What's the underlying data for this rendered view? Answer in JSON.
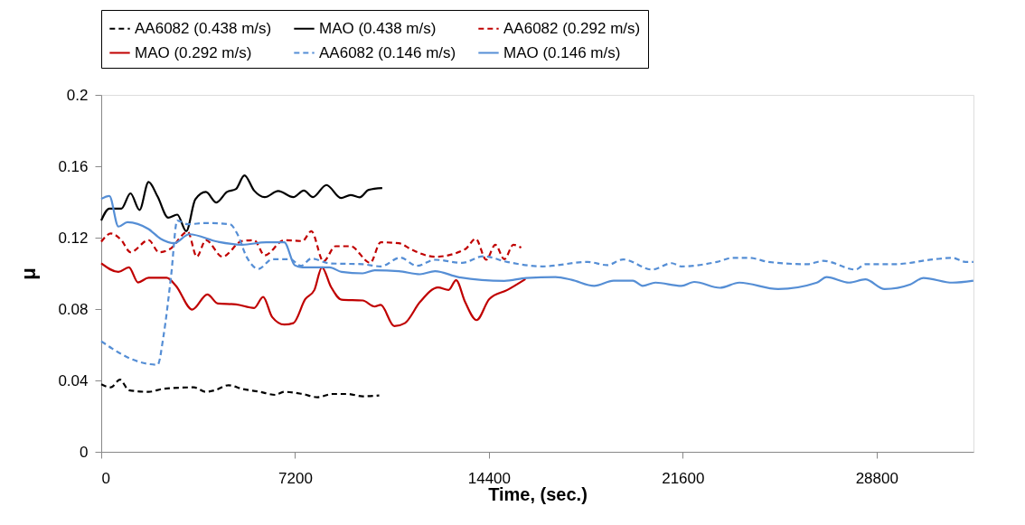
{
  "chart_data": {
    "type": "line",
    "xlabel": "Time, (sec.)",
    "ylabel": "μ",
    "xlim": [
      0,
      32400
    ],
    "xticks": [
      0,
      7200,
      14400,
      21600,
      28800
    ],
    "ylim": [
      0,
      0.2
    ],
    "yticks": [
      0,
      0.04,
      0.08,
      0.12,
      0.16,
      0.2
    ],
    "grid": false,
    "legend": "top",
    "marker": "none",
    "series": [
      {
        "name": "AA6082 (0.438 m/s)",
        "color": "#000000",
        "line_style": "dashed",
        "x": [
          0,
          358,
          694,
          1030,
          1758,
          2318,
          3438,
          3886,
          4222,
          4726,
          5230,
          5902,
          6462,
          6798,
          7470,
          8030,
          8590,
          9150,
          9710,
          10326
        ],
        "values": [
          0.0378,
          0.0361,
          0.0404,
          0.0345,
          0.0336,
          0.0353,
          0.0361,
          0.0336,
          0.0345,
          0.0373,
          0.0353,
          0.0336,
          0.0319,
          0.0336,
          0.0324,
          0.0306,
          0.0324,
          0.0324,
          0.0311,
          0.0316
        ]
      },
      {
        "name": "MAO (0.438 m/s)",
        "color": "#000000",
        "line_style": "solid",
        "x": [
          0,
          302,
          750,
          1086,
          1422,
          1758,
          2094,
          2486,
          2822,
          3158,
          3494,
          3886,
          4278,
          4670,
          5006,
          5320,
          5678,
          6070,
          6574,
          7134,
          7526,
          7862,
          8366,
          8904,
          9262,
          9598,
          9934,
          10438
        ],
        "values": [
          0.1296,
          0.1363,
          0.1363,
          0.1448,
          0.1355,
          0.1512,
          0.143,
          0.1312,
          0.1329,
          0.1236,
          0.1414,
          0.1456,
          0.1397,
          0.1456,
          0.1473,
          0.1549,
          0.1464,
          0.1427,
          0.1461,
          0.1427,
          0.1464,
          0.1427,
          0.1495,
          0.1422,
          0.1439,
          0.1426,
          0.1468,
          0.1478
        ]
      },
      {
        "name": "AA6082 (0.292 m/s)",
        "color": "#c00000",
        "line_style": "dashed",
        "x": [
          0,
          358,
          750,
          1086,
          1758,
          2150,
          2542,
          3214,
          3550,
          3886,
          4502,
          5230,
          5678,
          6070,
          6798,
          7470,
          7806,
          8254,
          8702,
          9262,
          9990,
          10382,
          11054,
          11502,
          12398,
          13518,
          13910,
          14302,
          14638,
          14974,
          15310,
          15600
        ],
        "values": [
          0.1177,
          0.1223,
          0.1186,
          0.1118,
          0.1186,
          0.1118,
          0.1135,
          0.1233,
          0.1093,
          0.1186,
          0.1093,
          0.1181,
          0.1186,
          0.1101,
          0.1186,
          0.1181,
          0.1236,
          0.1067,
          0.1152,
          0.1152,
          0.1059,
          0.1174,
          0.1169,
          0.1135,
          0.1093,
          0.1135,
          0.1194,
          0.1076,
          0.116,
          0.1079,
          0.116,
          0.1144
        ]
      },
      {
        "name": "MAO (0.292 m/s)",
        "color": "#c00000",
        "line_style": "solid",
        "x": [
          0,
          638,
          1030,
          1366,
          1758,
          2430,
          2766,
          3382,
          3942,
          4334,
          5006,
          5678,
          6014,
          6350,
          6798,
          7134,
          7582,
          7918,
          8198,
          8534,
          8926,
          9710,
          10158,
          10382,
          10886,
          11278,
          11838,
          12510,
          12902,
          13182,
          13518,
          13944,
          14414,
          15086,
          15758
        ],
        "values": [
          0.1056,
          0.1008,
          0.1034,
          0.0949,
          0.0975,
          0.0975,
          0.0932,
          0.0797,
          0.0882,
          0.0831,
          0.0826,
          0.0806,
          0.0868,
          0.0755,
          0.0713,
          0.0721,
          0.0856,
          0.0907,
          0.1034,
          0.0924,
          0.0853,
          0.0848,
          0.0814,
          0.0823,
          0.0704,
          0.0721,
          0.0839,
          0.0921,
          0.0907,
          0.0961,
          0.0839,
          0.0738,
          0.0856,
          0.0907,
          0.0968
        ]
      },
      {
        "name": "AA6082 (0.146 m/s)",
        "color": "#558ed5",
        "line_style": "dashed",
        "x": [
          0,
          414,
          1086,
          2094,
          2318,
          2598,
          2822,
          3214,
          3886,
          4782,
          5062,
          5398,
          5846,
          6350,
          7022,
          7414,
          7806,
          8478,
          9710,
          10382,
          11110,
          11726,
          12398,
          13406,
          14190,
          15073,
          16392,
          18071,
          18790,
          19390,
          20468,
          21187,
          21549,
          22865,
          23466,
          24067,
          24785,
          26222,
          26823,
          28021,
          28380,
          29461,
          30898,
          31620,
          32096,
          32395
        ],
        "values": [
          0.062,
          0.0578,
          0.0522,
          0.0488,
          0.0654,
          0.0991,
          0.1296,
          0.1275,
          0.1282,
          0.1275,
          0.1219,
          0.1093,
          0.1025,
          0.1079,
          0.1079,
          0.1042,
          0.1083,
          0.1056,
          0.1051,
          0.1039,
          0.1088,
          0.1042,
          0.1076,
          0.1059,
          0.1096,
          0.1064,
          0.1039,
          0.1064,
          0.1046,
          0.1078,
          0.1021,
          0.1057,
          0.1039,
          0.1064,
          0.1087,
          0.1087,
          0.1064,
          0.1051,
          0.107,
          0.1021,
          0.1051,
          0.1051,
          0.1078,
          0.1087,
          0.1064,
          0.1064
        ]
      },
      {
        "name": "MAO (0.146 m/s)",
        "color": "#558ed5",
        "line_style": "solid",
        "x": [
          0,
          302,
          638,
          974,
          1758,
          2206,
          2710,
          3270,
          4334,
          5230,
          6126,
          6798,
          7190,
          7470,
          8478,
          8926,
          9710,
          10158,
          11054,
          11838,
          12398,
          13294,
          14974,
          15791,
          16872,
          17470,
          18310,
          19031,
          19750,
          20109,
          20589,
          21549,
          22025,
          22985,
          23704,
          25144,
          26584,
          26943,
          27782,
          28380,
          29102,
          30058,
          30539,
          31620,
          32395
        ],
        "values": [
          0.1417,
          0.1434,
          0.1262,
          0.1287,
          0.1248,
          0.1194,
          0.1169,
          0.1219,
          0.1177,
          0.116,
          0.1174,
          0.1174,
          0.1045,
          0.1034,
          0.1034,
          0.1008,
          0.1,
          0.1017,
          0.1012,
          0.0995,
          0.1012,
          0.0978,
          0.0958,
          0.0974,
          0.0979,
          0.0964,
          0.093,
          0.0959,
          0.0959,
          0.093,
          0.0948,
          0.093,
          0.0952,
          0.0919,
          0.0948,
          0.0912,
          0.0948,
          0.0979,
          0.0948,
          0.0966,
          0.0912,
          0.0938,
          0.0974,
          0.0948,
          0.0959
        ]
      }
    ]
  }
}
